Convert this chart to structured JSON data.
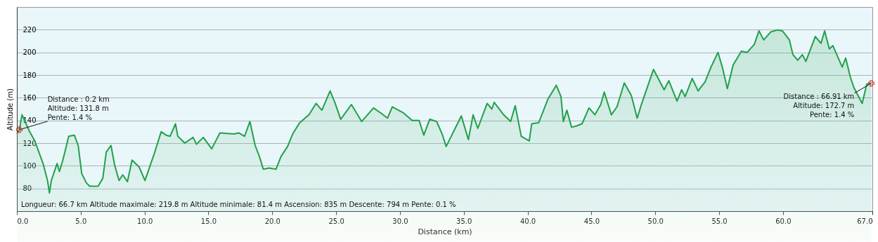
{
  "chart_data": {
    "type": "area",
    "xlabel": "Distance  (km)",
    "ylabel": "Altitude (m)",
    "xlim": [
      0,
      67
    ],
    "ylim": [
      60,
      240
    ],
    "xticks": [
      {
        "value": 0,
        "label": "0.0"
      },
      {
        "value": 5,
        "label": "5.0"
      },
      {
        "value": 10,
        "label": "10.0"
      },
      {
        "value": 15,
        "label": "15.0"
      },
      {
        "value": 20,
        "label": "20.0"
      },
      {
        "value": 25,
        "label": "25.0"
      },
      {
        "value": 30,
        "label": "30.0"
      },
      {
        "value": 35,
        "label": "35.0"
      },
      {
        "value": 40,
        "label": "40.0"
      },
      {
        "value": 45,
        "label": "45.0"
      },
      {
        "value": 50,
        "label": "50.0"
      },
      {
        "value": 55,
        "label": "55.0"
      },
      {
        "value": 60,
        "label": "60.0"
      },
      {
        "value": 67,
        "label": "67.0"
      }
    ],
    "yticks": [
      80,
      100,
      120,
      140,
      160,
      180,
      200,
      220
    ],
    "grid": "y",
    "series": [
      {
        "color": "#22a04a",
        "x": [
          0,
          0.2,
          0.4,
          1.0,
          1.4,
          2.05,
          2.4,
          2.55,
          2.7,
          3.15,
          3.33,
          3.6,
          3.8,
          4.06,
          4.5,
          4.8,
          5.08,
          5.44,
          5.7,
          6.36,
          6.73,
          7.0,
          7.37,
          7.65,
          8.0,
          8.29,
          8.66,
          9.02,
          9.57,
          10.03,
          10.77,
          11.3,
          11.69,
          12.0,
          12.42,
          12.6,
          13.15,
          13.8,
          14.07,
          14.6,
          15.26,
          15.9,
          17.0,
          17.38,
          17.83,
          18.25,
          18.66,
          19.0,
          19.3,
          19.76,
          20.3,
          20.68,
          21.2,
          21.6,
          22.15,
          22.88,
          23.43,
          23.89,
          24.53,
          24.9,
          25.36,
          26.2,
          27.0,
          27.93,
          28.57,
          29.03,
          29.4,
          30.22,
          30.96,
          31.5,
          31.87,
          32.33,
          32.88,
          33.34,
          33.62,
          34.81,
          35.36,
          35.73,
          36.1,
          36.83,
          37.2,
          37.38,
          38.12,
          38.67,
          39.03,
          39.5,
          40.13,
          40.32,
          40.87,
          41.6,
          42.25,
          42.61,
          42.8,
          43.07,
          43.44,
          43.8,
          44.26,
          44.81,
          45.27,
          45.73,
          46.0,
          46.56,
          47.0,
          47.57,
          48.12,
          48.58,
          48.94,
          49.4,
          49.86,
          50.69,
          51.06,
          51.7,
          52.06,
          52.34,
          52.89,
          53.35,
          53.9,
          54.36,
          54.91,
          55.27,
          55.64,
          56.1,
          56.74,
          57.2,
          57.75,
          58.12,
          58.49,
          59.04,
          59.59,
          59.95,
          60.5,
          60.78,
          61.15,
          61.52,
          61.79,
          62.53,
          62.98,
          63.26,
          63.63,
          63.9,
          64.64,
          64.91,
          65.28,
          65.55,
          66.2,
          66.56,
          66.91
        ],
        "values": [
          128,
          131.8,
          145,
          130,
          122,
          102,
          87,
          76,
          87,
          102,
          95,
          105,
          114,
          126,
          127,
          118,
          93,
          85,
          82,
          82,
          89,
          112,
          118,
          101,
          87,
          92,
          86,
          105,
          99,
          87,
          111,
          130,
          127,
          126,
          137,
          126,
          120,
          125,
          119,
          125,
          115,
          129,
          128,
          129,
          126,
          139,
          118,
          108,
          97,
          98,
          97,
          108,
          117,
          128,
          138,
          145,
          155,
          149,
          166,
          156,
          141,
          154,
          139,
          151,
          146,
          142,
          152,
          147,
          140,
          140,
          127,
          141,
          139,
          127,
          117,
          144,
          123,
          145,
          133,
          155,
          150,
          156,
          145,
          139,
          153,
          126,
          122,
          137,
          138,
          159,
          171,
          161,
          139,
          149,
          134,
          135,
          137,
          151,
          145,
          154,
          165,
          145,
          152,
          173,
          162,
          142,
          155,
          170,
          185,
          167,
          175,
          157,
          167,
          161,
          177,
          166,
          174,
          187,
          200,
          186,
          168,
          189,
          201,
          200,
          207,
          219,
          211,
          218,
          219.8,
          219,
          211,
          198,
          193,
          198,
          192,
          214,
          208,
          219,
          203,
          206,
          187,
          195,
          178,
          169,
          155,
          172,
          172.7
        ]
      }
    ],
    "annotations": [
      {
        "text": "Distance  : 0.2 km\nAltitude: 131.8 m\nPente: 1.4 %",
        "x": 0.2,
        "y": 131.8
      },
      {
        "text": "Distance  : 66.91 km\nAltitude: 172.7 m\nPente: 1.4 %",
        "x": 66.91,
        "y": 172.7
      },
      "Longueur: 66.7 km    Altitude maximale: 219.8 m    Altitude minimale: 81.4 m    Ascension: 835 m    Descente: 794 m    Pente: 0.1 %"
    ]
  }
}
